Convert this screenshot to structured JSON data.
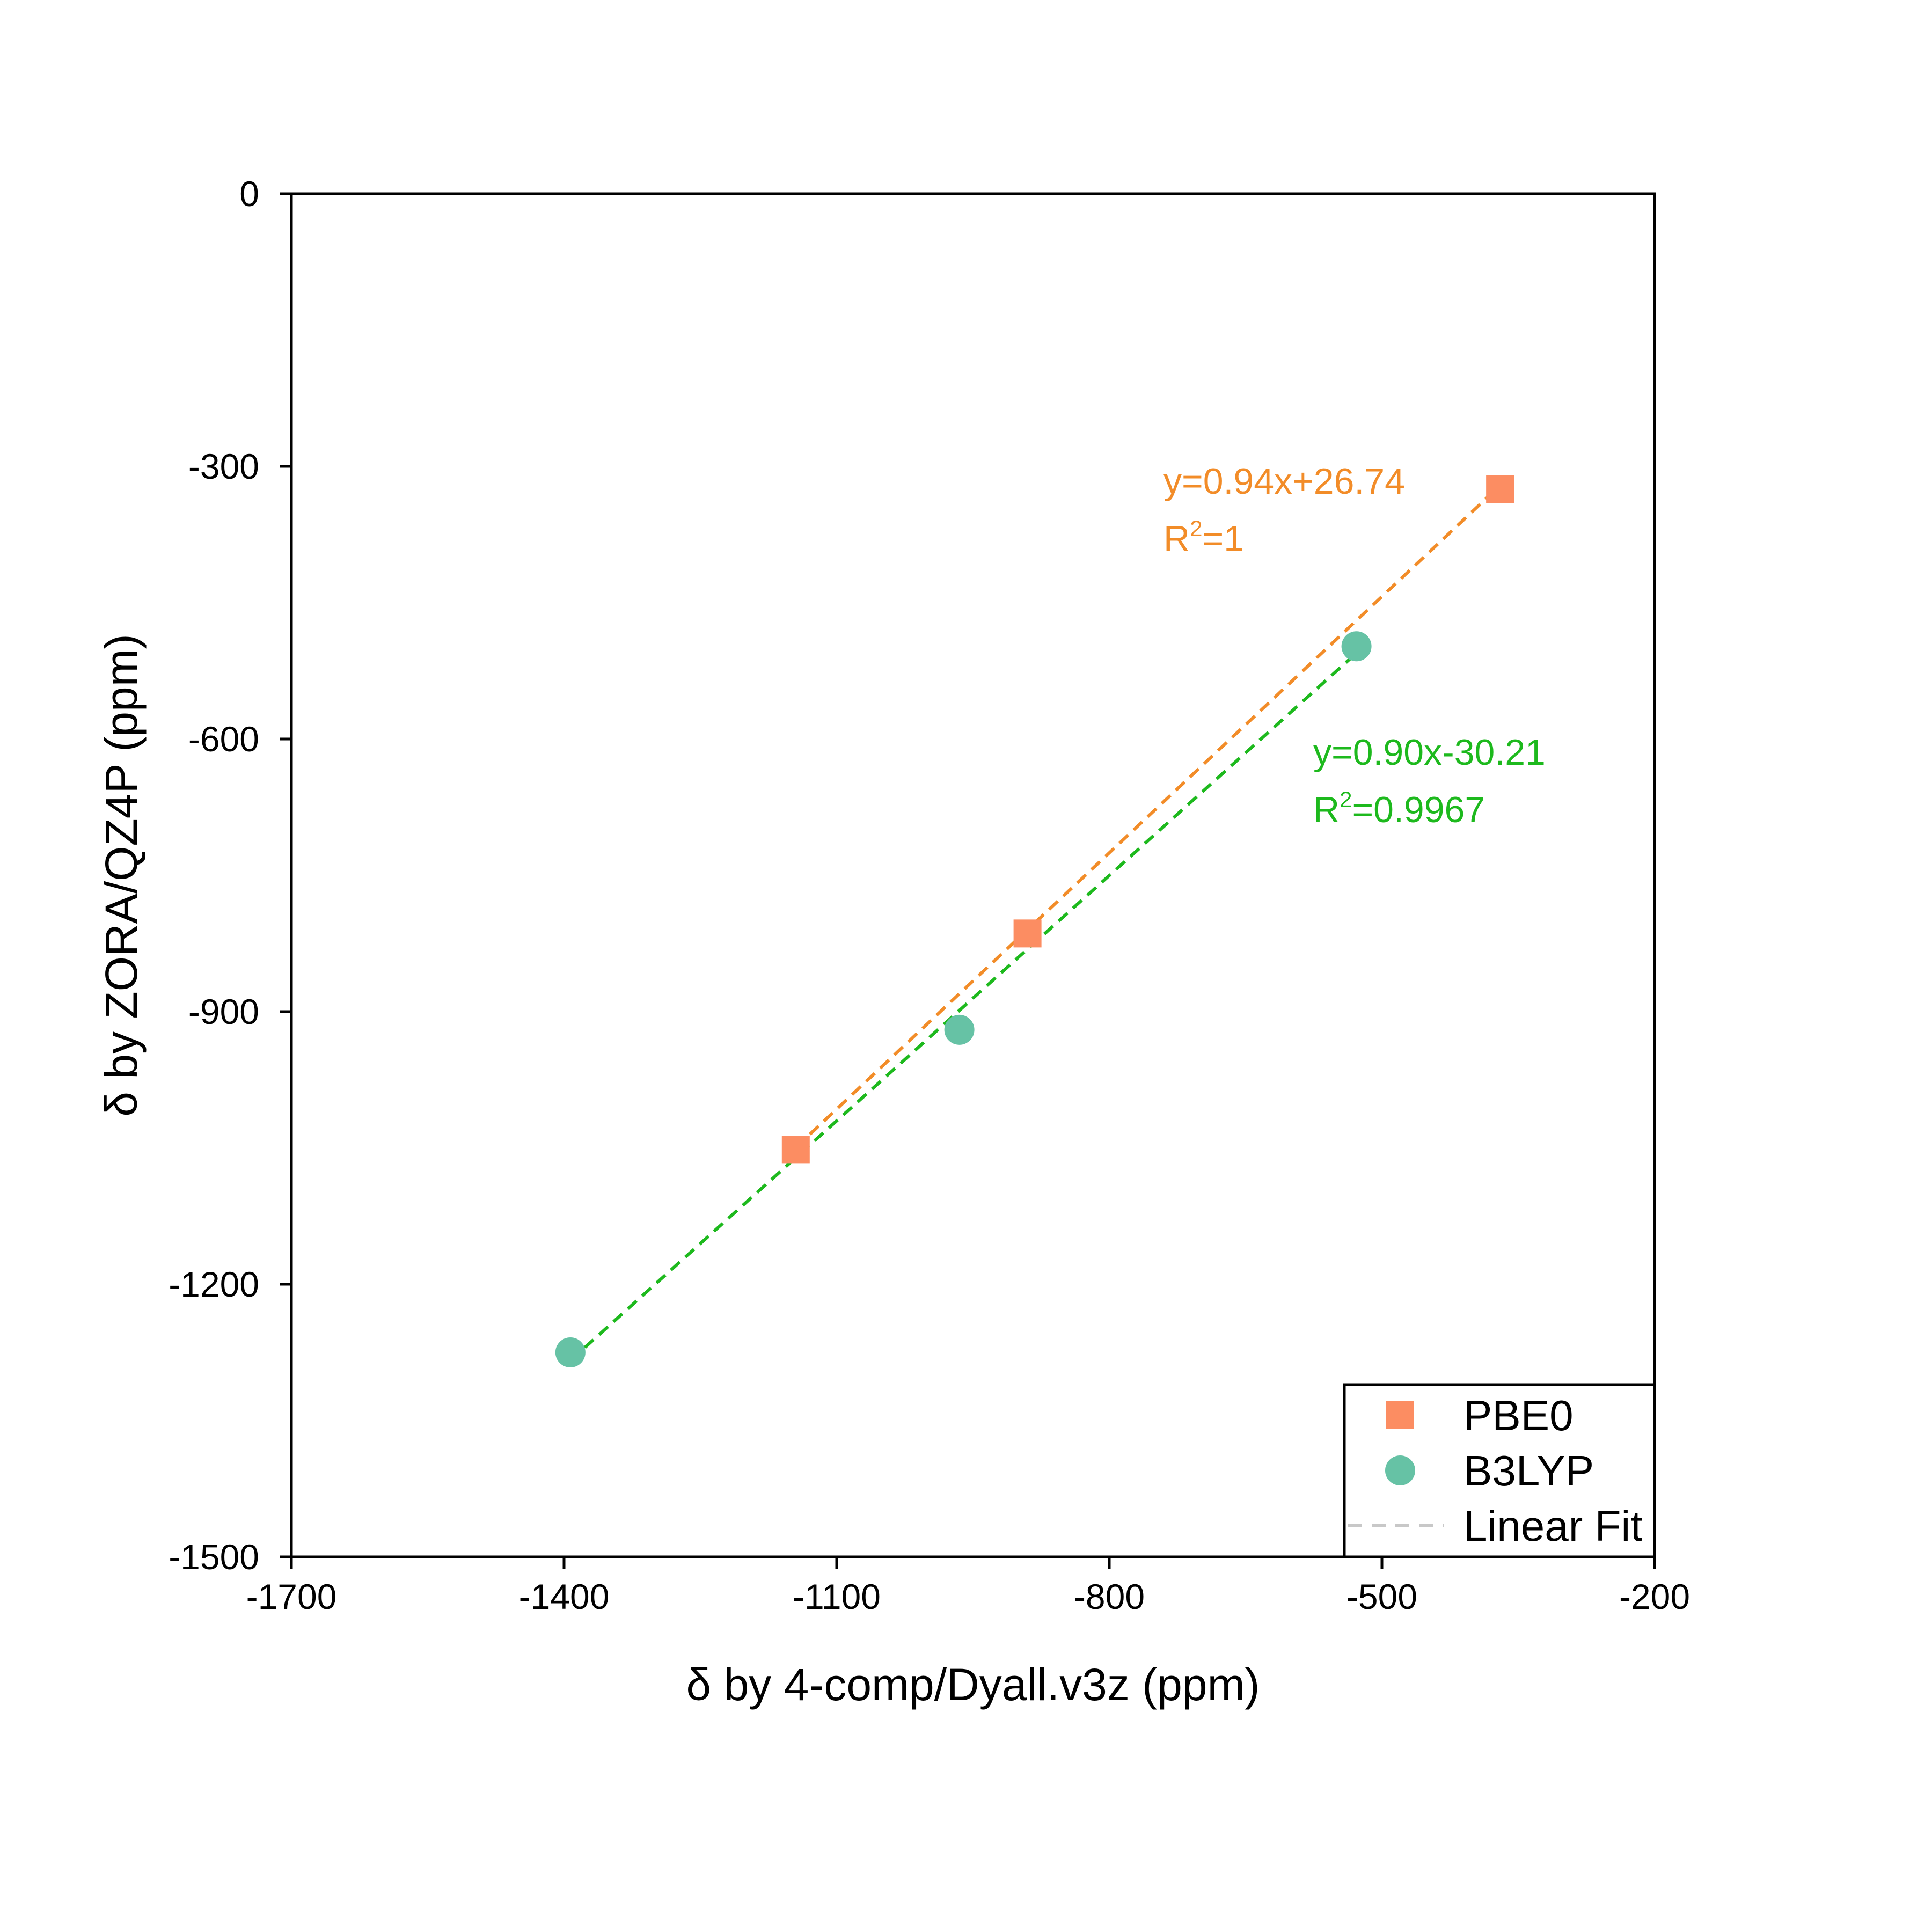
{
  "chart_data": {
    "type": "scatter",
    "xlabel": "δ by 4-comp/Dyall.v3z (ppm)",
    "ylabel": "δ by ZORA/QZ4P (ppm)",
    "xlim": [
      -1700,
      -200
    ],
    "ylim": [
      -1500,
      0
    ],
    "x_ticks": [
      -1700,
      -1400,
      -1100,
      -800,
      -500,
      -200
    ],
    "y_ticks": [
      0,
      -300,
      -600,
      -900,
      -1200,
      -1500
    ],
    "grid": false,
    "legend_position": "bottom-right",
    "legend_items": [
      "PBE0",
      "B3LYP",
      "Linear Fit"
    ],
    "series": [
      {
        "name": "PBE0",
        "marker": "square",
        "color": "#FC8D62",
        "fit_color": "#F28C28",
        "x": [
          -1145,
          -890,
          -370
        ],
        "y": [
          -1052,
          -814,
          -325
        ],
        "fit": {
          "slope": 0.94,
          "intercept": 26.74
        },
        "equation": "y=0.94x+26.74",
        "r2_prefix": "R",
        "r2_sup": "2",
        "r2_value": "=1"
      },
      {
        "name": "B3LYP",
        "marker": "circle",
        "color": "#66C2A5",
        "fit_color": "#1DB91D",
        "x": [
          -1393,
          -965,
          -528
        ],
        "y": [
          -1275,
          -920,
          -498
        ],
        "fit": {
          "slope": 0.9,
          "intercept": -30.21
        },
        "equation": "y=0.90x-30.21",
        "r2_prefix": "R",
        "r2_sup": "2",
        "r2_value": "=0.9967"
      }
    ]
  }
}
